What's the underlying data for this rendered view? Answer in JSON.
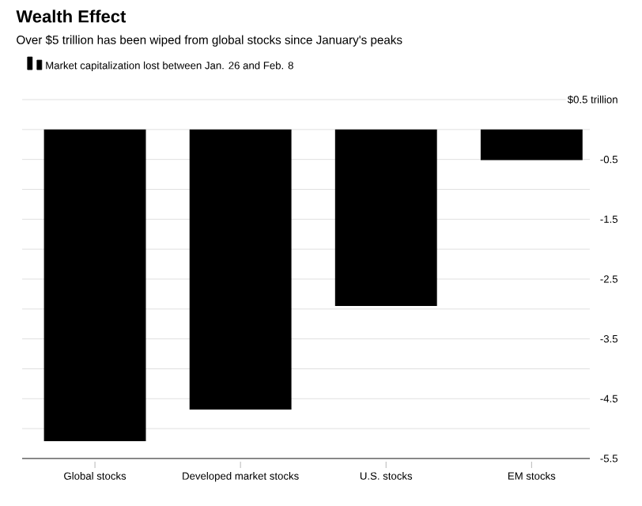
{
  "chart_data": {
    "type": "bar",
    "title": "Wealth Effect",
    "subtitle": "Over $5 trillion has been wiped from global stocks since January's peaks",
    "categories": [
      "Global stocks",
      "Developed market stocks",
      "U.S. stocks",
      "EM stocks"
    ],
    "series": [
      {
        "name": "Market capitalization lost between Jan. 26 and Feb. 8",
        "color": "#000000",
        "values": [
          -5.21,
          -4.68,
          -2.95,
          -0.51
        ]
      }
    ],
    "ylim": [
      -5.5,
      0.5
    ],
    "yticks": [
      {
        "value": 0.5,
        "label": "$0.5 trillion"
      },
      {
        "value": 0,
        "label": null
      },
      -0.5,
      {
        "value": -1,
        "label": null
      },
      -1.5,
      {
        "value": -2,
        "label": null
      },
      -2.5,
      {
        "value": -3,
        "label": null
      },
      -3.5,
      {
        "value": -4,
        "label": null
      },
      -4.5,
      {
        "value": -5,
        "label": null
      },
      -5.5
    ],
    "grid": "y",
    "legend": "top left"
  }
}
